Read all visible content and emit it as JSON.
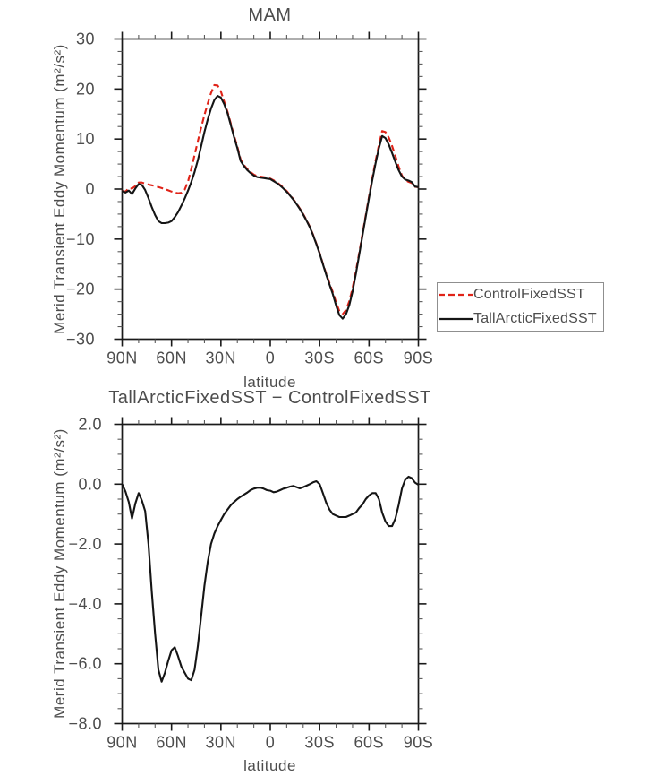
{
  "page": {
    "background": "#ffffff"
  },
  "colors": {
    "axis": "#1a1a1a",
    "text": "#4d4d4d",
    "control_red": "#e02318",
    "tall_black": "#151515"
  },
  "chart_data": [
    {
      "type": "line",
      "title": "MAM",
      "xlabel": "latitude",
      "ylabel": "Merid Transient Eddy Momentum (m²/s²)",
      "xlim": [
        90,
        -90
      ],
      "ylim": [
        -30,
        30
      ],
      "grid": false,
      "xticks": {
        "values": [
          90,
          60,
          30,
          0,
          -30,
          -60,
          -90
        ],
        "labels": [
          "90N",
          "60N",
          "30N",
          "0",
          "30S",
          "60S",
          "90S"
        ],
        "minor_step": 10
      },
      "yticks": {
        "values": [
          30,
          20,
          10,
          0,
          -10,
          -20,
          -30
        ],
        "labels": [
          "30",
          "20",
          "10",
          "0",
          "−10",
          "−20",
          "−30"
        ],
        "minor_step": 2.5
      },
      "legend": {
        "position": "outside-right",
        "entries": [
          {
            "label": "ControlFixedSST",
            "color": "#e02318",
            "dash": true
          },
          {
            "label": "TallArcticFixedSST",
            "color": "#151515",
            "dash": false
          }
        ]
      },
      "x_lat": [
        90,
        88,
        86,
        84,
        82,
        80,
        78,
        76,
        74,
        72,
        70,
        68,
        66,
        64,
        62,
        60,
        58,
        56,
        54,
        52,
        50,
        48,
        46,
        44,
        42,
        40,
        38,
        36,
        34,
        32,
        30,
        28,
        26,
        24,
        22,
        20,
        18,
        16,
        14,
        12,
        10,
        8,
        6,
        4,
        2,
        0,
        -2,
        -4,
        -6,
        -8,
        -10,
        -12,
        -14,
        -16,
        -18,
        -20,
        -22,
        -24,
        -26,
        -28,
        -30,
        -32,
        -34,
        -36,
        -38,
        -40,
        -42,
        -44,
        -46,
        -48,
        -50,
        -52,
        -54,
        -56,
        -58,
        -60,
        -62,
        -64,
        -66,
        -68,
        -70,
        -72,
        -74,
        -76,
        -78,
        -80,
        -82,
        -84,
        -86,
        -88,
        -90
      ],
      "series": [
        {
          "name": "ControlFixedSST",
          "color": "#e02318",
          "dash": [
            7,
            4
          ],
          "width": 2.1,
          "values": [
            -0.4,
            -0.5,
            0.2,
            0.1,
            0.6,
            1.3,
            1.3,
            1.1,
            0.9,
            0.75,
            0.6,
            0.4,
            0.2,
            0.0,
            -0.25,
            -0.5,
            -0.7,
            -0.85,
            -0.75,
            -0.1,
            1.5,
            4.0,
            6.8,
            9.6,
            12.3,
            14.8,
            17.1,
            19.2,
            20.8,
            20.7,
            19.5,
            17.5,
            15.5,
            13.1,
            10.7,
            8.5,
            5.9,
            4.8,
            4.0,
            3.4,
            2.9,
            2.6,
            2.5,
            2.4,
            2.3,
            2.1,
            1.75,
            1.35,
            0.85,
            0.25,
            -0.4,
            -1.2,
            -2.0,
            -2.9,
            -3.9,
            -5.0,
            -6.2,
            -7.5,
            -9.1,
            -10.9,
            -12.8,
            -14.9,
            -16.9,
            -18.8,
            -20.6,
            -22.7,
            -24.4,
            -25.0,
            -24.2,
            -22.4,
            -19.8,
            -16.5,
            -12.8,
            -9.0,
            -5.2,
            -1.5,
            2.2,
            5.7,
            8.8,
            11.6,
            11.4,
            10.3,
            8.6,
            6.6,
            4.5,
            2.7,
            1.8,
            1.45,
            1.2,
            0.45,
            0.4
          ]
        },
        {
          "name": "TallArcticFixedSST",
          "color": "#151515",
          "dash": null,
          "width": 2.1,
          "values": [
            -0.4,
            -0.7,
            -0.3,
            -1.0,
            0.1,
            1.0,
            0.8,
            -0.2,
            -1.8,
            -3.6,
            -5.2,
            -6.4,
            -6.8,
            -6.8,
            -6.7,
            -6.4,
            -5.6,
            -4.6,
            -3.3,
            -1.9,
            -0.3,
            1.4,
            3.4,
            5.8,
            8.6,
            11.4,
            13.9,
            16.1,
            17.8,
            18.6,
            18.3,
            17.0,
            15.2,
            12.8,
            10.4,
            8.2,
            5.6,
            4.6,
            3.8,
            3.2,
            2.7,
            2.4,
            2.3,
            2.2,
            2.1,
            2.0,
            1.6,
            1.2,
            0.7,
            0.1,
            -0.55,
            -1.3,
            -2.1,
            -3.0,
            -4.0,
            -5.1,
            -6.3,
            -7.6,
            -9.2,
            -11.0,
            -12.9,
            -15.0,
            -17.1,
            -19.1,
            -21.0,
            -23.3,
            -25.2,
            -25.9,
            -25.0,
            -23.2,
            -20.5,
            -17.0,
            -13.2,
            -9.3,
            -5.5,
            -1.8,
            1.8,
            5.2,
            8.2,
            10.6,
            10.2,
            8.9,
            7.2,
            5.4,
            3.8,
            2.5,
            1.9,
            1.7,
            1.4,
            0.5,
            0.4
          ]
        }
      ]
    },
    {
      "type": "line",
      "title": "TallArcticFixedSST − ControlFixedSST",
      "xlabel": "latitude",
      "ylabel": "Merid Transient Eddy Momentum (m²/s²)",
      "xlim": [
        90,
        -90
      ],
      "ylim": [
        -8,
        2
      ],
      "grid": false,
      "xticks": {
        "values": [
          90,
          60,
          30,
          0,
          -30,
          -60,
          -90
        ],
        "labels": [
          "90N",
          "60N",
          "30N",
          "0",
          "30S",
          "60S",
          "90S"
        ],
        "minor_step": 10
      },
      "yticks": {
        "values": [
          2,
          0,
          -2,
          -4,
          -6,
          -8
        ],
        "labels": [
          "2.0",
          "0.0",
          "−2.0",
          "−4.0",
          "−6.0",
          "−8.0"
        ],
        "minor_step": 0.5
      },
      "x_lat": [
        90,
        88,
        86,
        84,
        82,
        80,
        78,
        76,
        74,
        72,
        70,
        68,
        66,
        64,
        62,
        60,
        58,
        56,
        54,
        52,
        50,
        48,
        46,
        44,
        42,
        40,
        38,
        36,
        34,
        32,
        30,
        28,
        26,
        24,
        22,
        20,
        18,
        16,
        14,
        12,
        10,
        8,
        6,
        4,
        2,
        0,
        -2,
        -4,
        -6,
        -8,
        -10,
        -12,
        -14,
        -16,
        -18,
        -20,
        -22,
        -24,
        -26,
        -28,
        -30,
        -32,
        -34,
        -36,
        -38,
        -40,
        -42,
        -44,
        -46,
        -48,
        -50,
        -52,
        -54,
        -56,
        -58,
        -60,
        -62,
        -64,
        -66,
        -68,
        -70,
        -72,
        -74,
        -76,
        -78,
        -80,
        -82,
        -84,
        -86,
        -88,
        -90
      ],
      "series": [
        {
          "name": "TallArcticFixedSST − ControlFixedSST",
          "color": "#151515",
          "dash": null,
          "width": 2.1,
          "values": [
            0.0,
            -0.25,
            -0.6,
            -1.15,
            -0.65,
            -0.3,
            -0.55,
            -0.9,
            -2.0,
            -3.6,
            -5.0,
            -6.2,
            -6.6,
            -6.3,
            -5.9,
            -5.55,
            -5.45,
            -5.75,
            -6.1,
            -6.3,
            -6.5,
            -6.55,
            -6.2,
            -5.4,
            -4.4,
            -3.4,
            -2.6,
            -2.0,
            -1.65,
            -1.4,
            -1.2,
            -1.0,
            -0.85,
            -0.7,
            -0.6,
            -0.5,
            -0.42,
            -0.35,
            -0.28,
            -0.2,
            -0.15,
            -0.12,
            -0.12,
            -0.15,
            -0.2,
            -0.22,
            -0.27,
            -0.25,
            -0.2,
            -0.15,
            -0.12,
            -0.08,
            -0.06,
            -0.1,
            -0.14,
            -0.1,
            -0.05,
            0.0,
            0.06,
            0.1,
            0.0,
            -0.3,
            -0.62,
            -0.85,
            -1.0,
            -1.05,
            -1.1,
            -1.1,
            -1.1,
            -1.05,
            -1.0,
            -0.95,
            -0.8,
            -0.68,
            -0.5,
            -0.38,
            -0.3,
            -0.3,
            -0.5,
            -0.95,
            -1.25,
            -1.4,
            -1.4,
            -1.15,
            -0.7,
            -0.15,
            0.15,
            0.25,
            0.2,
            0.05,
            -0.02
          ]
        }
      ]
    }
  ]
}
